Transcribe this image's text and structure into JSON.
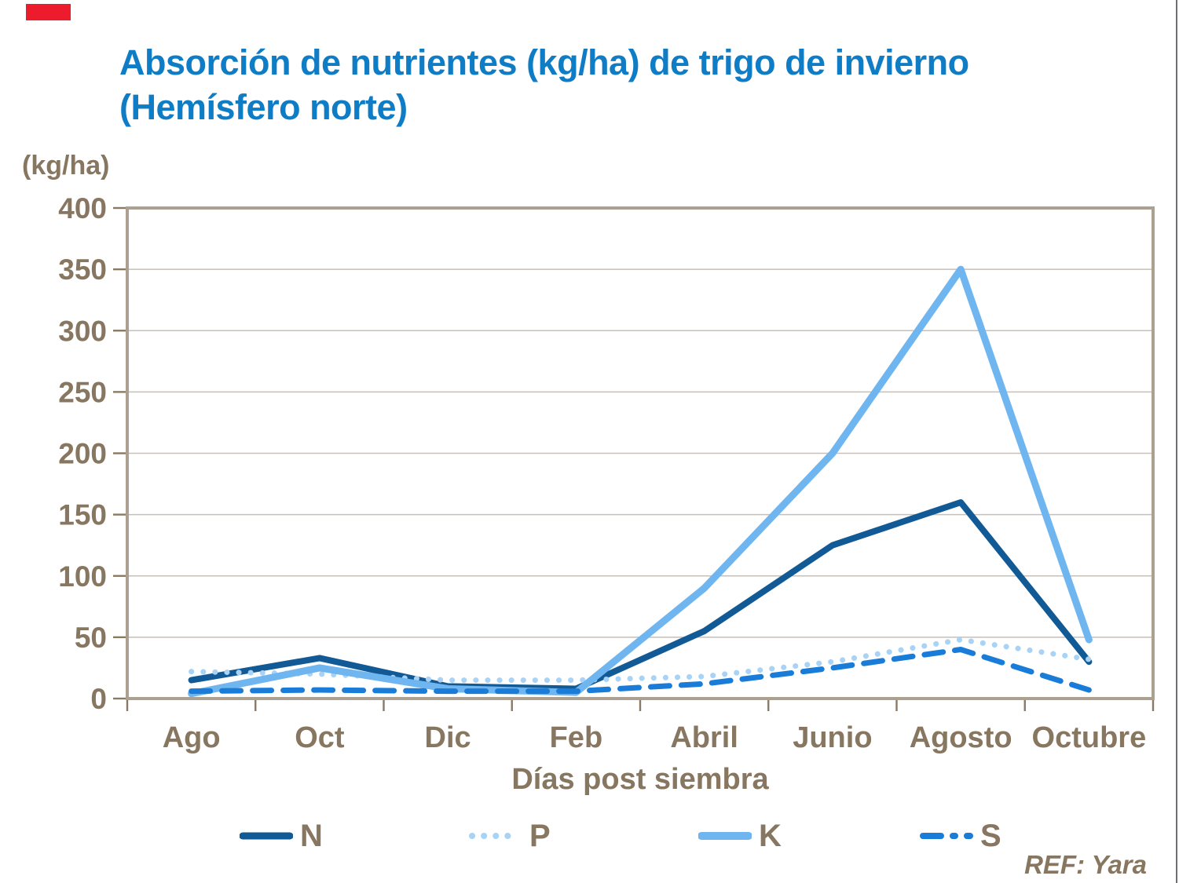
{
  "slide": {
    "title": "Absorción de nutrientes (kg/ha) de trigo de invierno\n(Hemísfero norte)",
    "title_color": "#0F7DC6",
    "text_color": "#877660",
    "marker_color": "#EC1C2D",
    "ref_text": "REF: Yara"
  },
  "chart_data": {
    "type": "line",
    "title": "Absorción de nutrientes (kg/ha) de trigo de invierno (Hemísfero norte)",
    "unit_label": "(kg/ha)",
    "xlabel": "Días post siembra",
    "ylabel": "(kg/ha)",
    "ylim": [
      0,
      400
    ],
    "ytick_step": 50,
    "yticks": [
      0,
      50,
      100,
      150,
      200,
      250,
      300,
      350,
      400
    ],
    "categories": [
      "Ago",
      "Oct",
      "Dic",
      "Feb",
      "Abril",
      "Junio",
      "Agosto",
      "Octubre"
    ],
    "series": [
      {
        "name": "N",
        "style": "solid",
        "color": "#115A96",
        "width": 8,
        "values": [
          15,
          33,
          10,
          8,
          55,
          125,
          160,
          30
        ]
      },
      {
        "name": "P",
        "style": "dotted",
        "color": "#A8D3F6",
        "width": 7,
        "values": [
          22,
          20,
          15,
          15,
          18,
          30,
          48,
          32
        ]
      },
      {
        "name": "K",
        "style": "solid",
        "color": "#6FB6F0",
        "width": 9,
        "values": [
          4,
          25,
          8,
          5,
          90,
          200,
          350,
          48
        ]
      },
      {
        "name": "S",
        "style": "dashed",
        "color": "#1A7CD9",
        "width": 7,
        "values": [
          6,
          7,
          6,
          6,
          12,
          25,
          40,
          7
        ]
      }
    ],
    "legend_position": "bottom",
    "grid": true,
    "frame_color": "#ACA091",
    "grid_color": "#C9BFB2",
    "tick_color": "#8A7A64"
  }
}
